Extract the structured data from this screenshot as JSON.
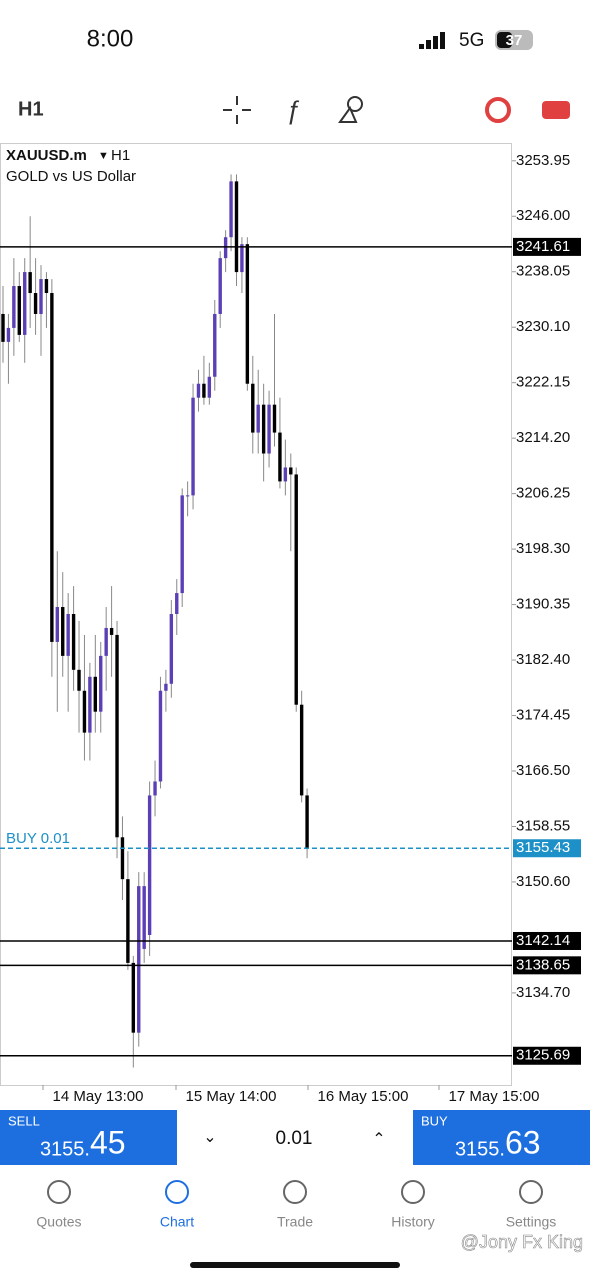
{
  "status_bar": {
    "time": "8:00",
    "network": "5G",
    "battery": "37"
  },
  "toolbar": {
    "timeframe": "H1"
  },
  "chart_data": {
    "type": "candlestick",
    "symbol": "XAUUSD.m",
    "timeframe": "H1",
    "description": "GOLD vs US Dollar",
    "up_color": "#5b3fb5",
    "down_color": "#000000",
    "open": [
      3232,
      3228,
      3230,
      3236,
      3229,
      3238,
      3235,
      3232,
      3237,
      3235,
      3185,
      3190,
      3183,
      3189,
      3181,
      3178,
      3172,
      3180,
      3175,
      3183,
      3187,
      3186,
      3157,
      3151,
      3139,
      3129,
      3141,
      3143,
      3163,
      3165,
      3178,
      3179,
      3189,
      3192,
      3206,
      3206,
      3220,
      3222,
      3220,
      3223,
      3232,
      3240,
      3243,
      3251,
      3238,
      3242,
      3222,
      3215,
      3219,
      3212,
      3219,
      3215,
      3208,
      3210,
      3209,
      3176,
      3163
    ],
    "high": [
      3236,
      3232,
      3240,
      3238,
      3240,
      3246,
      3240,
      3239,
      3238,
      3237,
      3198,
      3195,
      3192,
      3193,
      3188,
      3186,
      3182,
      3186,
      3185,
      3190,
      3193,
      3188,
      3160,
      3155,
      3140,
      3152,
      3152,
      3165,
      3168,
      3180,
      3181,
      3191,
      3194,
      3207,
      3208,
      3222,
      3224,
      3226,
      3225,
      3234,
      3241,
      3244,
      3252,
      3252,
      3243,
      3243,
      3226,
      3224,
      3222,
      3221,
      3232,
      3220,
      3214,
      3212,
      3210,
      3178,
      3164
    ],
    "low": [
      3225,
      3222,
      3226,
      3228,
      3225,
      3230,
      3229,
      3226,
      3230,
      3180,
      3175,
      3180,
      3175,
      3178,
      3172,
      3168,
      3168,
      3172,
      3172,
      3178,
      3180,
      3154,
      3148,
      3138,
      3124,
      3127,
      3139,
      3140,
      3160,
      3164,
      3175,
      3177,
      3186,
      3190,
      3203,
      3204,
      3218,
      3219,
      3219,
      3221,
      3230,
      3238,
      3241,
      3236,
      3235,
      3221,
      3212,
      3212,
      3208,
      3210,
      3213,
      3207,
      3206,
      3198,
      3175,
      3162,
      3154
    ],
    "close": [
      3228,
      3230,
      3236,
      3229,
      3238,
      3235,
      3232,
      3237,
      3235,
      3185,
      3190,
      3183,
      3189,
      3181,
      3178,
      3172,
      3180,
      3175,
      3183,
      3187,
      3186,
      3157,
      3151,
      3139,
      3129,
      3150,
      3150,
      3163,
      3165,
      3178,
      3179,
      3189,
      3192,
      3206,
      3206,
      3220,
      3222,
      3220,
      3223,
      3232,
      3240,
      3243,
      3251,
      3238,
      3242,
      3222,
      3215,
      3219,
      3212,
      3219,
      3215,
      3208,
      3210,
      3209,
      3176,
      3163,
      3155.43
    ],
    "ylim": [
      3121.5,
      3256.5
    ],
    "yticks": [
      3253.95,
      {
        "value": 3246,
        "label": "3246.00"
      },
      3238.05,
      {
        "value": 3230.1,
        "label": "3230.10"
      },
      3222.15,
      {
        "value": 3214.2,
        "label": "3214.20"
      },
      3206.25,
      {
        "value": 3198.3,
        "label": "3198.30"
      },
      3190.35,
      {
        "value": 3182.4,
        "label": "3182.40"
      },
      3174.45,
      {
        "value": 3166.5,
        "label": "3166.50"
      },
      3158.55,
      {
        "value": 3150.6,
        "label": "3150.60"
      },
      {
        "value": 3134.7,
        "label": "3134.70"
      }
    ],
    "xlabels": [
      "14 May 13:00",
      "15 May 14:00",
      "16 May 15:00",
      "17 May 15:00"
    ],
    "levels": [
      3241.61,
      3142.14,
      3138.65,
      3125.69
    ],
    "position": {
      "label": "BUY 0.01",
      "price": 3155.43,
      "color": "#1e90c8"
    }
  },
  "trade_bar": {
    "sell_label": "SELL",
    "sell_main": "3155.",
    "sell_big": "45",
    "lot": "0.01",
    "buy_label": "BUY",
    "buy_main": "3155.",
    "buy_big": "63"
  },
  "nav": [
    "Quotes",
    "Chart",
    "Trade",
    "History",
    "Settings"
  ],
  "watermark": "@Jony Fx King"
}
